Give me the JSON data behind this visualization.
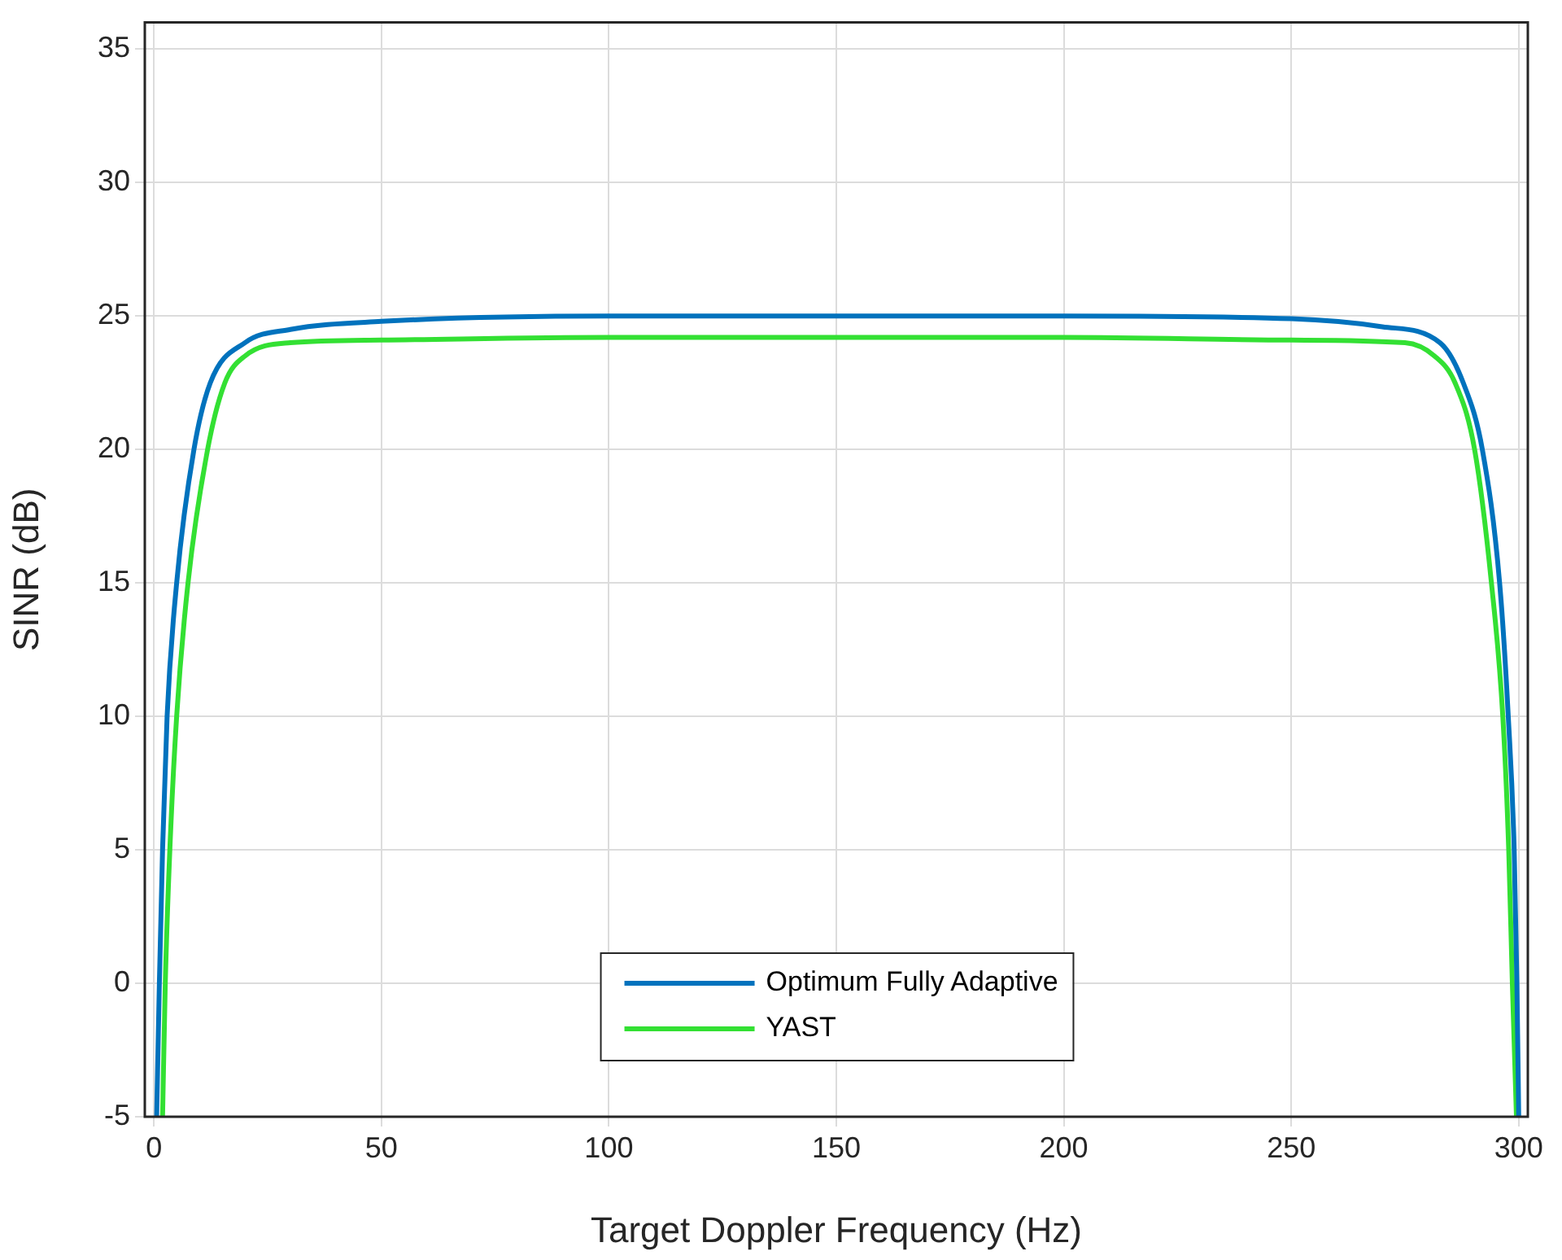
{
  "chart_data": {
    "type": "line",
    "xlabel": "Target Doppler Frequency (Hz)",
    "ylabel": "SINR (dB)",
    "xlim": [
      -2,
      302
    ],
    "xticks": [
      0,
      50,
      100,
      150,
      200,
      250,
      300
    ],
    "ylim": [
      -5,
      36
    ],
    "yticks": [
      -5,
      0,
      5,
      10,
      15,
      20,
      25,
      30,
      35
    ],
    "grid": true,
    "legend": "bottom",
    "marker": "none",
    "line_style": "solid",
    "series": [
      {
        "name": "Optimum Fully Adaptive",
        "color": "#0072bd",
        "x": [
          0.6,
          1.2,
          1.9,
          2.9,
          5,
          8.8,
          12.4,
          20,
          30,
          50,
          100,
          150,
          200,
          250,
          270,
          282.7,
          287.8,
          292,
          295.8,
          297.7,
          299,
          299.6,
          300
        ],
        "values": [
          -5,
          0,
          5,
          10,
          15,
          20,
          22.5,
          24,
          24.5,
          24.8,
          25,
          25,
          25,
          24.9,
          24.6,
          24,
          22.5,
          20,
          15,
          10,
          5,
          0,
          -5
        ]
      },
      {
        "name": "YAST",
        "color": "#33e033",
        "x": [
          1.9,
          2.5,
          3.5,
          5,
          7.5,
          11.8,
          15.6,
          20,
          30,
          50,
          100,
          150,
          200,
          250,
          275,
          281.5,
          286,
          290.3,
          294,
          296.5,
          297.8,
          298.6,
          299.5
        ],
        "values": [
          -5,
          0,
          5,
          10,
          15,
          20,
          22.5,
          23.5,
          24,
          24.1,
          24.2,
          24.2,
          24.2,
          24.1,
          24,
          23.5,
          22.5,
          20,
          15,
          10,
          5,
          0,
          -5
        ]
      }
    ]
  }
}
